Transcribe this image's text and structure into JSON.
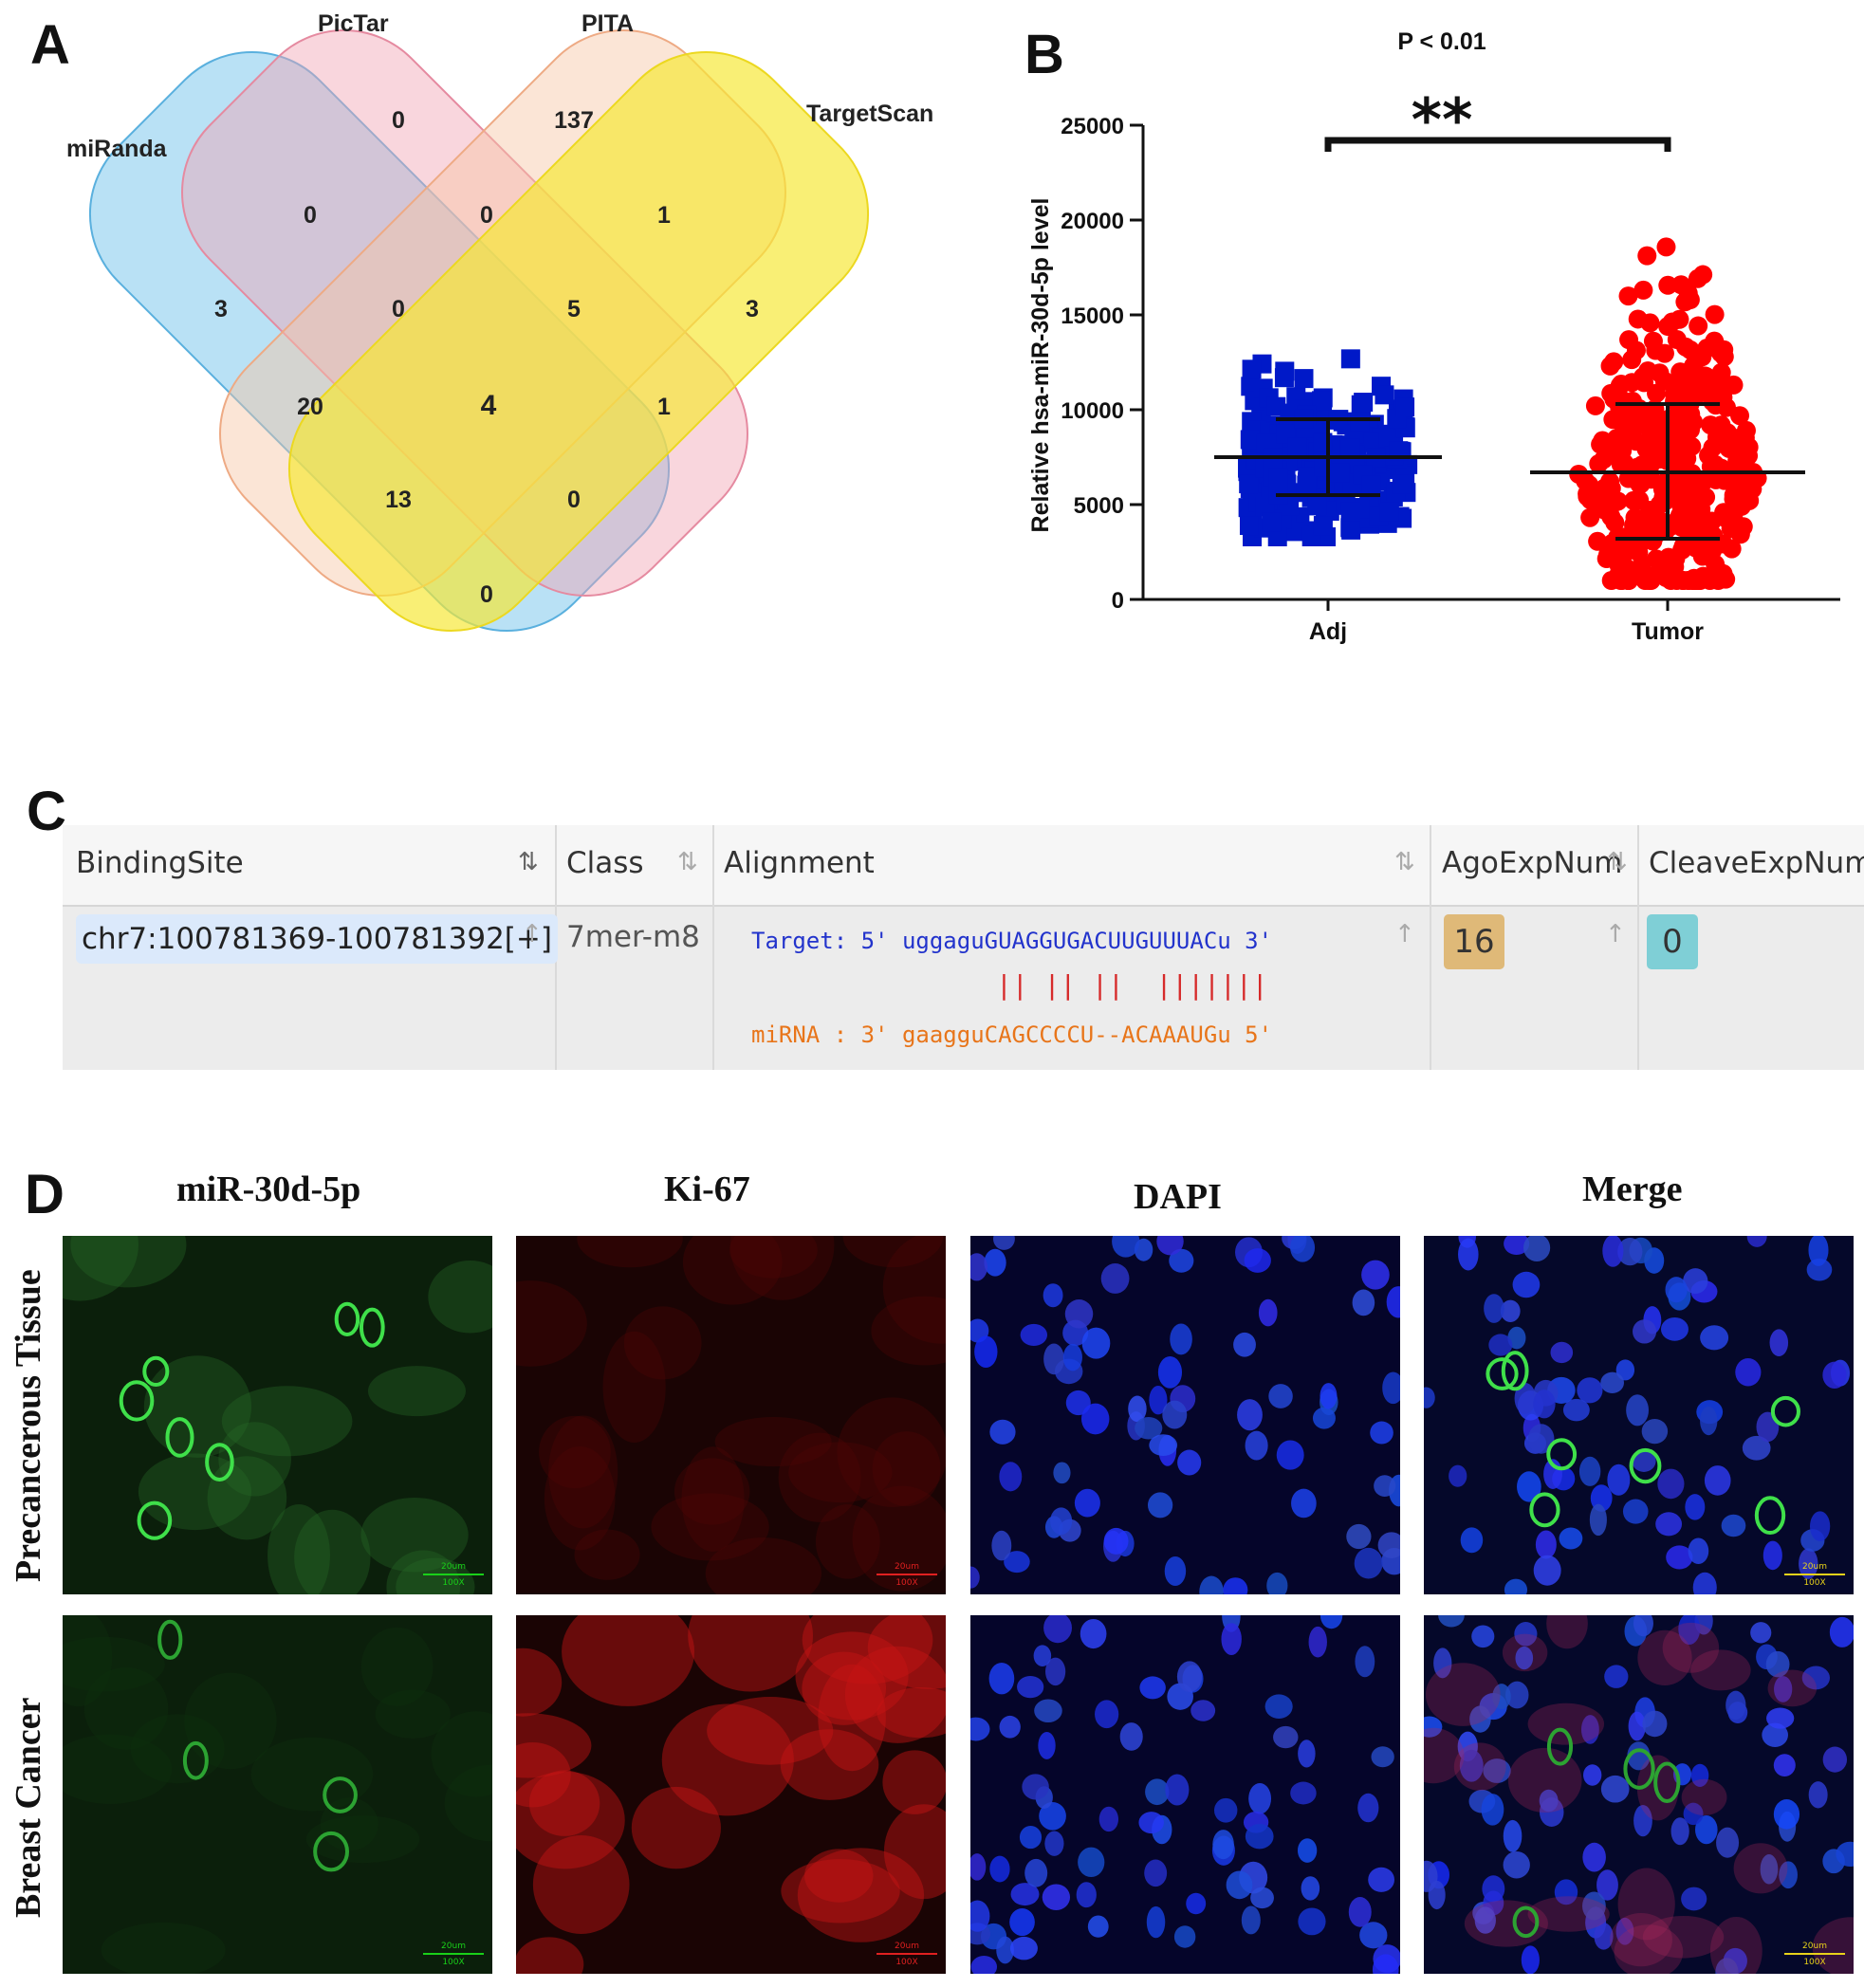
{
  "panels": {
    "a": "A",
    "b": "B",
    "c": "C",
    "d": "D"
  },
  "venn": {
    "sets": [
      {
        "name": "miRanda",
        "color": "#7fc8ec"
      },
      {
        "name": "PicTar",
        "color": "#f2a3b3"
      },
      {
        "name": "PITA",
        "color": "#f7c6a3"
      },
      {
        "name": "TargetScan",
        "color": "#f6e834"
      }
    ],
    "regions": [
      "0",
      "137",
      "0",
      "0",
      "1",
      "3",
      "0",
      "5",
      "3",
      "20",
      "4",
      "1",
      "13",
      "0",
      "0"
    ]
  },
  "chart_data": {
    "type": "scatter",
    "title": "",
    "annotation": "P < 0.01",
    "significance": "**",
    "xlabel": "",
    "ylabel": "Relative hsa-miR-30d-5p level",
    "ylim": [
      0,
      25000
    ],
    "yticks": [
      "0",
      "5000",
      "10000",
      "15000",
      "20000",
      "25000"
    ],
    "categories": [
      "Adj",
      "Tumor"
    ],
    "series": [
      {
        "name": "Adj",
        "color": "#0019c8",
        "marker": "square",
        "mean": 7500,
        "sd_low": 5500,
        "sd_high": 9500,
        "min": 3300,
        "max": 12700
      },
      {
        "name": "Tumor",
        "color": "#ff0000",
        "marker": "circle",
        "mean": 6700,
        "sd_low": 3200,
        "sd_high": 10300,
        "min": 1000,
        "max": 22300
      }
    ],
    "grid": false
  },
  "table": {
    "headers": [
      "BindingSite",
      "Class",
      "Alignment",
      "AgoExpNum",
      "CleaveExpNum"
    ],
    "row": {
      "binding_site": "chr7:100781369-100781392[+]",
      "class": "7mer-m8",
      "target_line": "Target: 5' uggaguGUAGGUGACUUGUUUACu 3'",
      "pairs_line": "|| || ||  |||||||",
      "mirna_line": "miRNA : 3' gaagguCAGCCCCU--ACAAAUGu 5'",
      "ago_exp_num": "16",
      "cleave_exp_num": "0"
    },
    "colors": {
      "target": "#2233cc",
      "pairs": "#d62a2a",
      "mirna": "#e8751a",
      "ago_badge": "#dfb978",
      "cleave_badge": "#7fcfd6"
    }
  },
  "micrographs": {
    "columns": [
      "miR-30d-5p",
      "Ki-67",
      "DAPI",
      "Merge"
    ],
    "rows": [
      "Precancerous Tissue",
      "Breast Cancer"
    ],
    "scale_label": "20um",
    "magnification": "100X"
  }
}
